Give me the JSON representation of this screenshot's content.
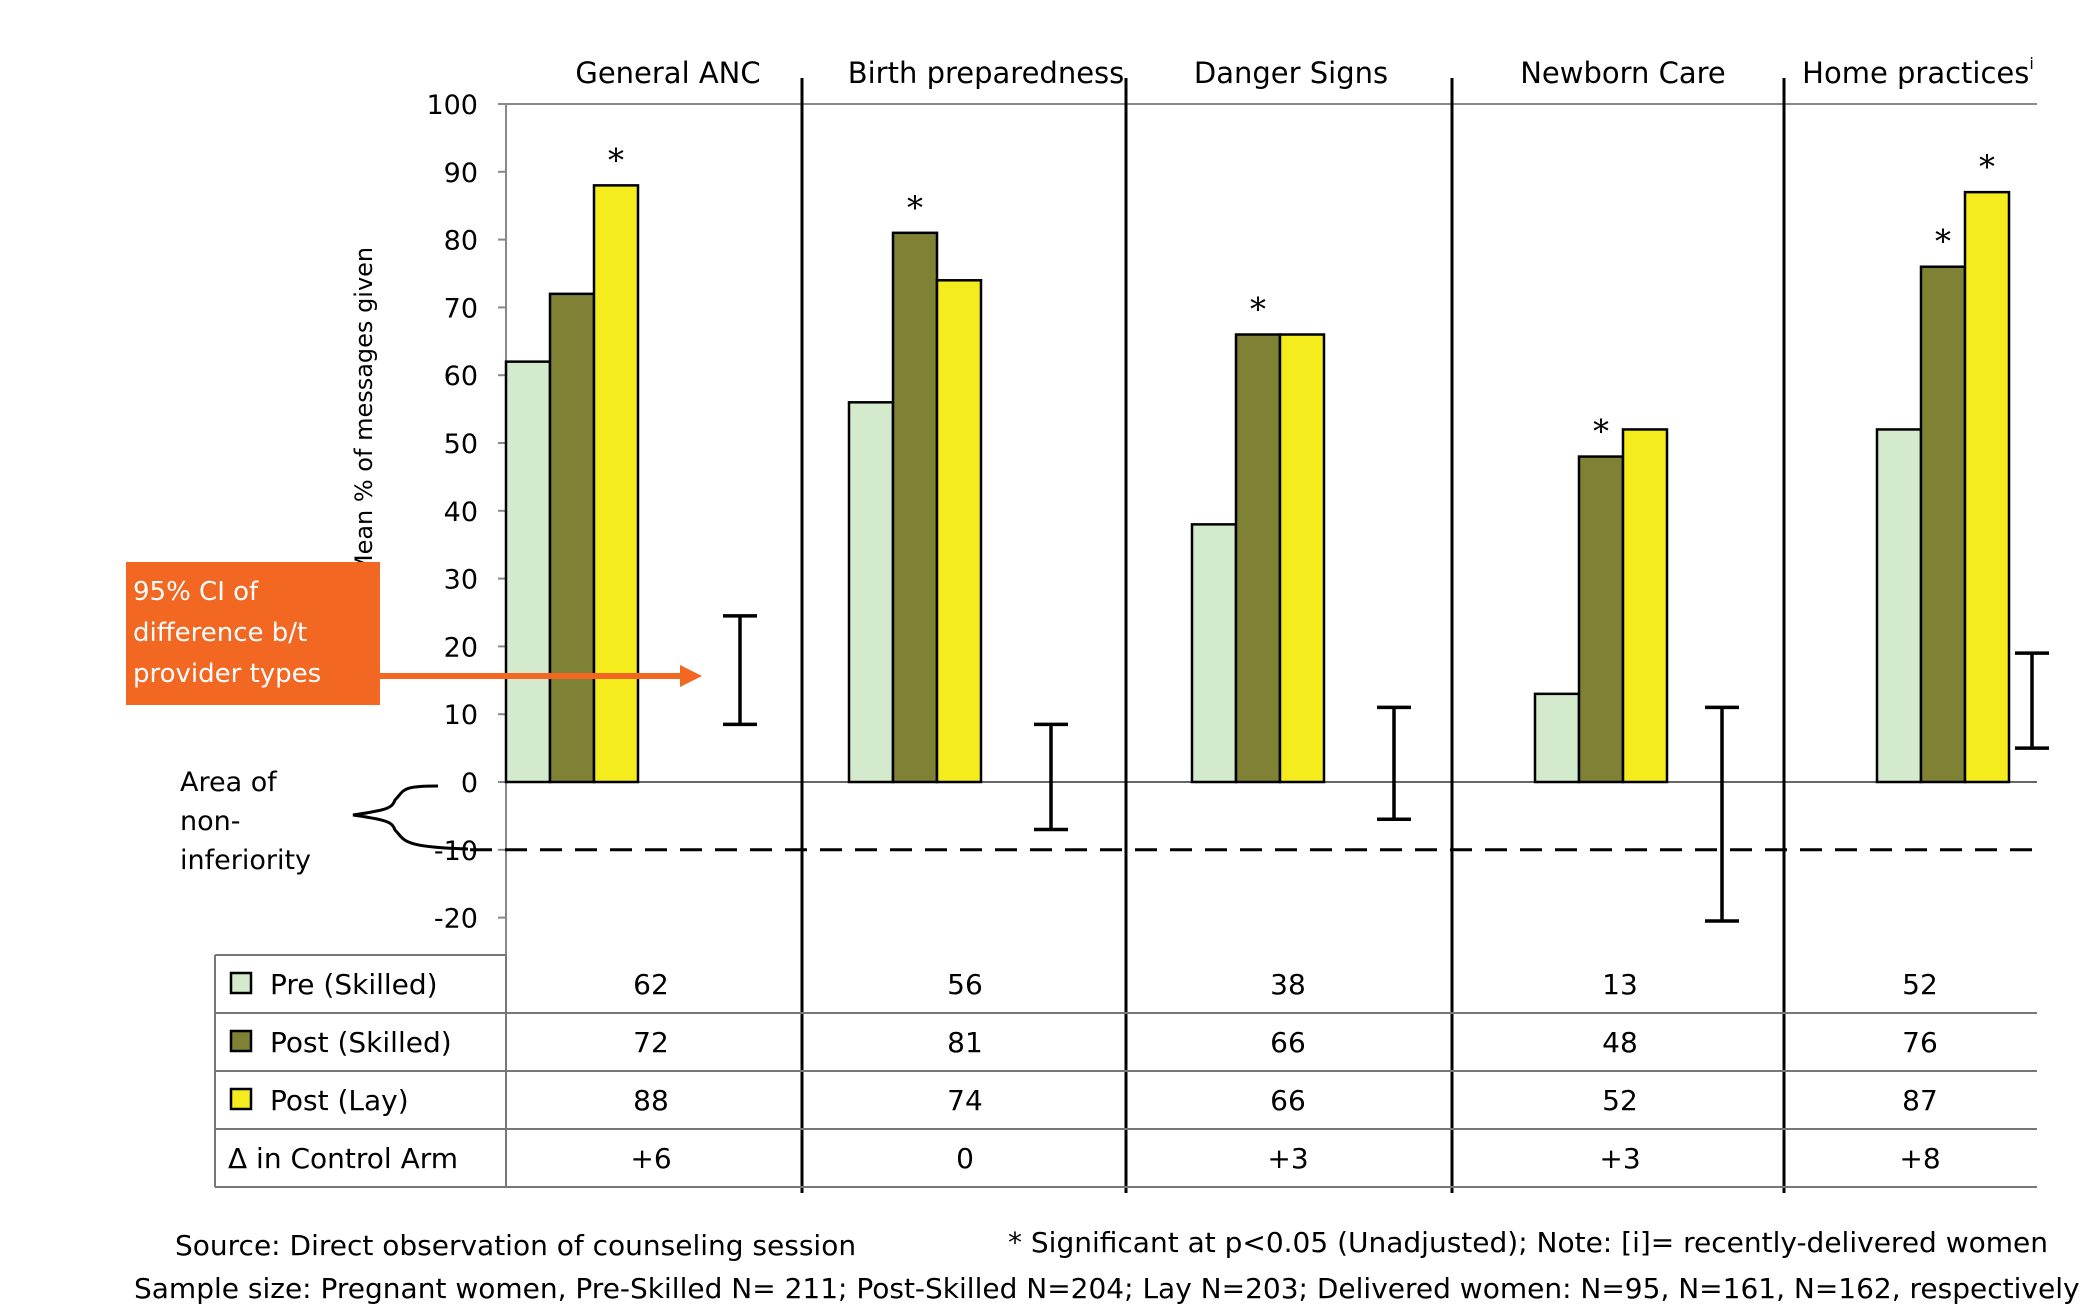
{
  "chart_data": {
    "type": "bar",
    "categories": [
      "General ANC",
      "Birth preparedness",
      "Danger Signs",
      "Newborn Care",
      "Home practices"
    ],
    "category_superscripts": [
      "",
      "",
      "",
      "",
      "i"
    ],
    "series": [
      {
        "name": "Pre (Skilled)",
        "values": [
          62,
          56,
          38,
          13,
          52
        ],
        "color": "#d3ebcc"
      },
      {
        "name": "Post (Skilled)",
        "values": [
          72,
          81,
          66,
          48,
          76
        ],
        "color": "#7f8134"
      },
      {
        "name": "Post (Lay)",
        "values": [
          88,
          74,
          66,
          52,
          87
        ],
        "color": "#f5ec1e"
      }
    ],
    "significance": [
      [
        "",
        "",
        "*"
      ],
      [
        "",
        "*",
        ""
      ],
      [
        "",
        "*",
        ""
      ],
      [
        "",
        "*",
        ""
      ],
      [
        "",
        "*",
        "*"
      ]
    ],
    "ci_intervals": [
      [
        8.5,
        24.5
      ],
      [
        -7,
        8.5
      ],
      [
        -5.5,
        11
      ],
      [
        -20.5,
        11
      ],
      [
        5,
        19
      ]
    ],
    "non_inferiority_margin": -10,
    "ylabel": "Mean % of messages given",
    "ylim": [
      -20,
      100
    ],
    "yticks": [
      -20,
      -10,
      0,
      10,
      20,
      30,
      40,
      50,
      60,
      70,
      80,
      90,
      100
    ],
    "table_rows": [
      {
        "label": "Pre (Skilled)",
        "values": [
          "62",
          "56",
          "38",
          "13",
          "52"
        ]
      },
      {
        "label": "Post (Skilled)",
        "values": [
          "72",
          "81",
          "66",
          "48",
          "76"
        ]
      },
      {
        "label": "Post (Lay)",
        "values": [
          "88",
          "74",
          "66",
          "52",
          "87"
        ]
      },
      {
        "label": "Δ in Control Arm",
        "values": [
          "+6",
          "0",
          "+3",
          "+3",
          "+8"
        ]
      }
    ]
  },
  "annotations": {
    "ci_note": [
      "95% CI of",
      "difference b/t",
      "provider types"
    ],
    "area_label": [
      "Area of",
      "non-",
      "inferiority"
    ]
  },
  "footer": {
    "source": "Source: Direct observation of counseling session",
    "significance": "* Significant at p<0.05 (Unadjusted);  Note: [i]= recently-delivered women",
    "sample_size": "Sample size:  Pregnant women, Pre-Skilled N= 211; Post-Skilled N=204; Lay N=203;  Delivered women: N=95, N=161, N=162, respectively"
  },
  "colors": {
    "accent": "#f26722",
    "pre": "#d3ebcc",
    "post_skilled": "#7f8134",
    "post_lay": "#f5ec1e"
  }
}
